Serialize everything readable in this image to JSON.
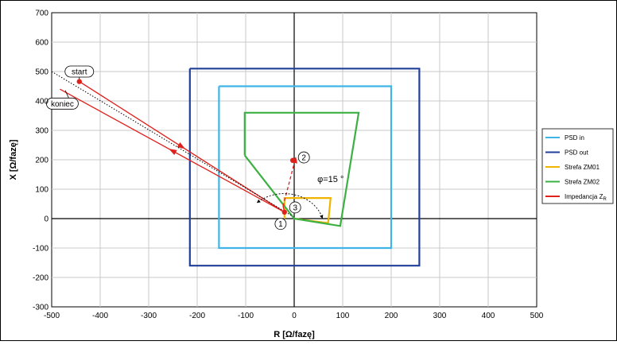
{
  "chart_data": {
    "type": "line",
    "title": "",
    "xlabel": "R [Ω/fazę]",
    "ylabel": "X [Ω/fazę]",
    "xlim": [
      -500,
      500
    ],
    "ylim": [
      -300,
      700
    ],
    "x_ticks": [
      -500,
      -400,
      -300,
      -200,
      -100,
      0,
      100,
      200,
      300,
      400,
      500
    ],
    "y_ticks": [
      -300,
      -200,
      -100,
      0,
      100,
      200,
      300,
      400,
      500,
      600,
      700
    ],
    "grid": true,
    "legend_position": "right",
    "series": [
      {
        "name": "PSD in",
        "color": "#3fb4e6",
        "points": [
          [
            -155,
            450
          ],
          [
            200,
            450
          ],
          [
            200,
            -100
          ],
          [
            -155,
            -100
          ],
          [
            -155,
            450
          ]
        ]
      },
      {
        "name": "PSD out",
        "color": "#1f3f99",
        "points": [
          [
            -215,
            510
          ],
          [
            258,
            510
          ],
          [
            258,
            -160
          ],
          [
            -215,
            -160
          ],
          [
            -215,
            510
          ]
        ]
      },
      {
        "name": "Strefa ZM01",
        "color": "#f0b400",
        "points": [
          [
            -20,
            0
          ],
          [
            -20,
            70
          ],
          [
            75,
            70
          ],
          [
            70,
            -15
          ],
          [
            0,
            0
          ]
        ]
      },
      {
        "name": "Strefa ZM02",
        "color": "#3cb043",
        "points": [
          [
            -102,
            215
          ],
          [
            -102,
            360
          ],
          [
            133,
            360
          ],
          [
            95,
            -25
          ],
          [
            0,
            0
          ],
          [
            -102,
            215
          ]
        ]
      },
      {
        "name": "Impedancja Z",
        "name_subscript": "R",
        "color": "#e0201b",
        "polylines": [
          [
            [
              -443,
              466
            ],
            [
              -20,
              22
            ]
          ],
          [
            [
              -483,
              440
            ],
            [
              -20,
              22
            ]
          ],
          [
            [
              -500,
              502
            ],
            [
              -20,
              22
            ]
          ],
          [
            [
              -20,
              22
            ],
            [
              -23,
              42
            ]
          ],
          [
            [
              -23,
              42
            ],
            [
              2,
              200
            ]
          ]
        ]
      }
    ],
    "reference_line": {
      "color": "#000000",
      "points": [
        [
          -500,
          500
        ],
        [
          -5,
          10
        ]
      ]
    },
    "markers": [
      {
        "x": -443,
        "y": 466
      },
      {
        "x": -20,
        "y": 22
      },
      {
        "x": -3,
        "y": 198
      }
    ],
    "annotations": {
      "start": {
        "label": "start",
        "x": -443,
        "y": 500
      },
      "koniec": {
        "label": "koniec",
        "x": -478,
        "y": 391
      },
      "point_1": {
        "label": "1",
        "x": -28,
        "y": -18
      },
      "point_2": {
        "label": "2",
        "x": 20,
        "y": 208
      },
      "point_3": {
        "label": "3",
        "x": 2,
        "y": 38
      },
      "angle": {
        "label": "φ=15  °",
        "x": 75,
        "y": 125
      }
    }
  }
}
